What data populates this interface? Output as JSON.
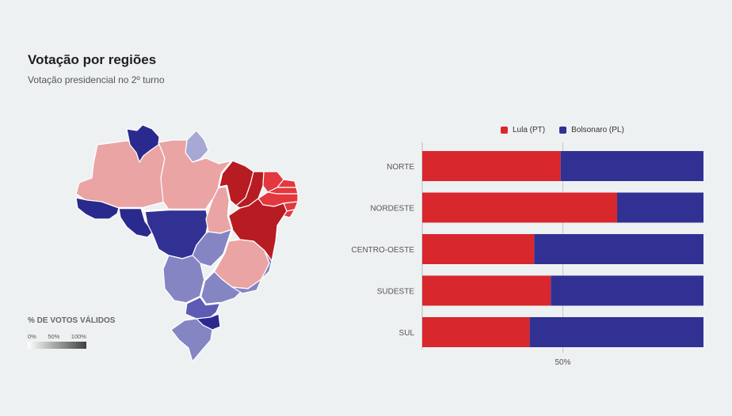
{
  "header": {
    "title": "Votação por regiões",
    "subtitle": "Votação presidencial no 2º turno"
  },
  "scale_legend": {
    "title": "% DE VOTOS VÁLIDOS",
    "ticks": [
      "0%",
      "50%",
      "100%"
    ]
  },
  "colors": {
    "lula": "#d9272e",
    "bolsonaro": "#313194",
    "map_lula_strong": "#b71c22",
    "map_lula_medium": "#e2383e",
    "map_lula_light": "#eaa4a4",
    "map_bolsonaro_strong": "#2a2a8e",
    "map_bolsonaro_medium": "#5c5cb4",
    "map_bolsonaro_light": "#8585c4",
    "map_bolsonaro_pale": "#a8a8d6",
    "map_border": "#ffffff"
  },
  "chart_data": {
    "type": "bar",
    "orientation": "horizontal",
    "stacked": true,
    "categories": [
      "NORTE",
      "NORDESTE",
      "CENTRO-OESTE",
      "SUDESTE",
      "SUL"
    ],
    "series": [
      {
        "name": "Lula (PT)",
        "values": [
          49.2,
          69.3,
          39.8,
          45.7,
          38.2
        ]
      },
      {
        "name": "Bolsonaro (PL)",
        "values": [
          50.8,
          30.7,
          60.2,
          54.3,
          61.8
        ]
      }
    ],
    "xlim": [
      0,
      100
    ],
    "x_tick_labels": [
      {
        "value": 50,
        "label": "50%"
      }
    ],
    "legend_position": "top"
  }
}
